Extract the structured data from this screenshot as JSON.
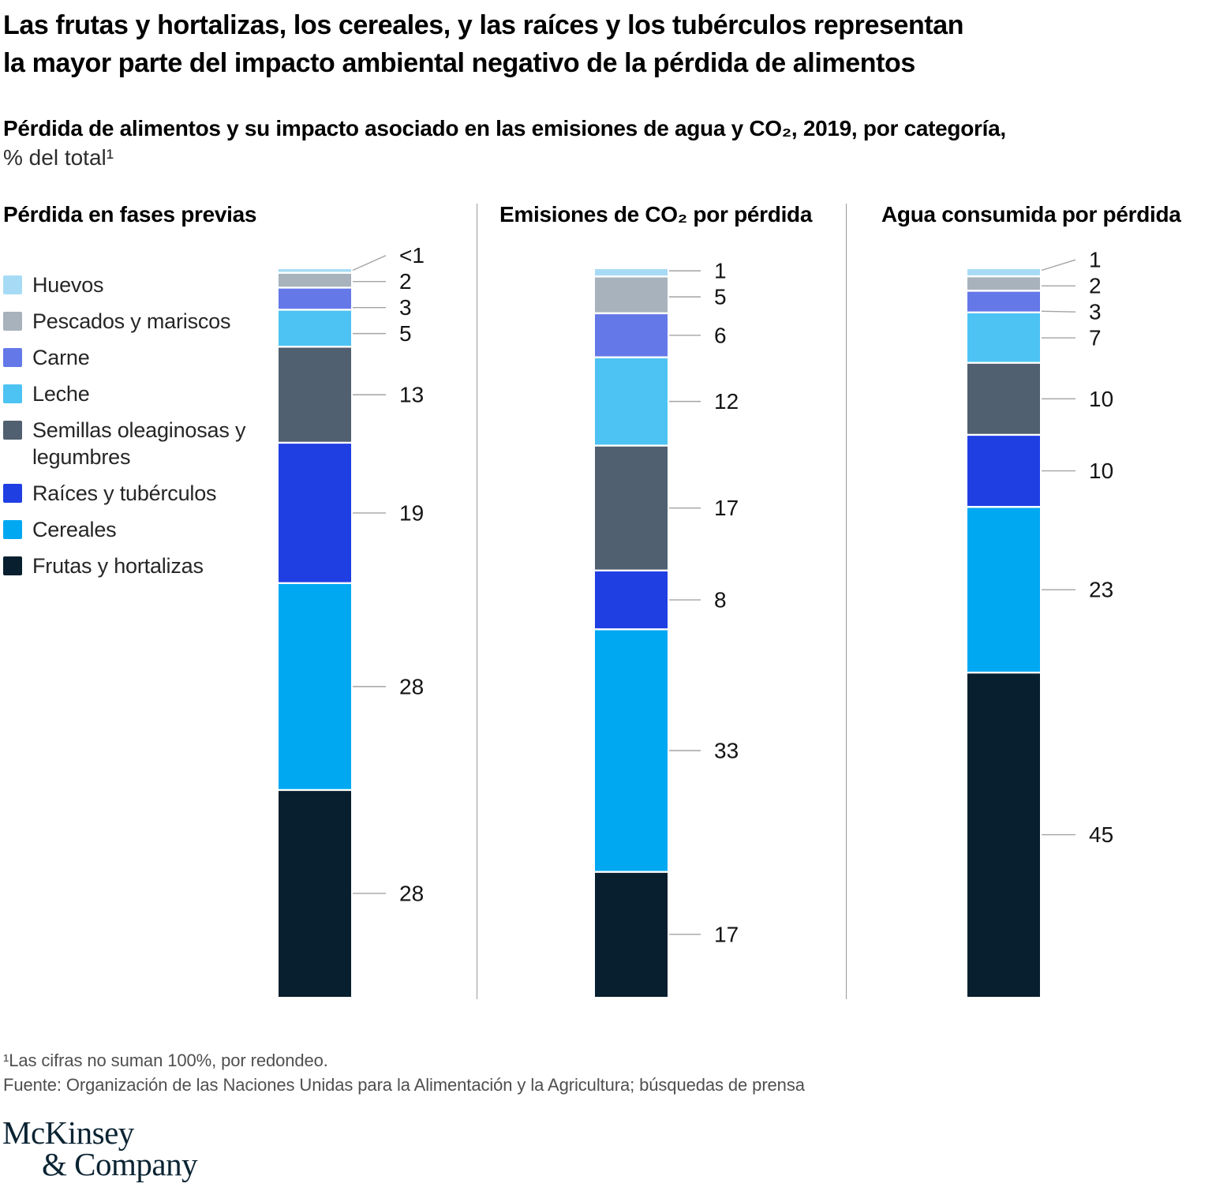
{
  "header": {
    "title_line1": "Las frutas y hortalizas, los cereales, y las raíces y los tubérculos representan",
    "title_line2": "la mayor parte del impacto ambiental negativo de la pérdida de alimentos",
    "subtitle_bold": "Pérdida de alimentos y su impacto asociado en las emisiones de agua y CO₂, 2019, por categoría,",
    "subtitle_regular": "% del total¹"
  },
  "legend": {
    "items": [
      {
        "label": "Huevos",
        "color": "#A7DBF5"
      },
      {
        "label": "Pescados y mariscos",
        "color": "#A7B2BC"
      },
      {
        "label": "Carne",
        "color": "#6478E8"
      },
      {
        "label": "Leche",
        "color": "#4DC3F3"
      },
      {
        "label": "Semillas oleaginosas y legumbres",
        "color": "#506070"
      },
      {
        "label": "Raíces y tubérculos",
        "color": "#1F3FE3"
      },
      {
        "label": "Cereales",
        "color": "#00A8F2"
      },
      {
        "label": "Frutas y hortalizas",
        "color": "#071F2E"
      }
    ]
  },
  "chart_data": {
    "type": "stacked-bar",
    "unit": "% del total",
    "legend_position": "left",
    "categories_top_to_bottom": [
      "Huevos",
      "Pescados y mariscos",
      "Carne",
      "Leche",
      "Semillas oleaginosas y legumbres",
      "Raíces y tubérculos",
      "Cereales",
      "Frutas y hortalizas"
    ],
    "charts": [
      {
        "title": "Pérdida en fases previas",
        "labels": [
          "<1",
          "2",
          "3",
          "5",
          "13",
          "19",
          "28",
          "28"
        ],
        "values": [
          0.5,
          2,
          3,
          5,
          13,
          19,
          28,
          28
        ]
      },
      {
        "title": "Emisiones de CO₂ por pérdida",
        "labels": [
          "1",
          "5",
          "6",
          "12",
          "17",
          "8",
          "33",
          "17"
        ],
        "values": [
          1,
          5,
          6,
          12,
          17,
          8,
          33,
          17
        ]
      },
      {
        "title": "Agua consumida por pérdida",
        "labels": [
          "1",
          "2",
          "3",
          "7",
          "10",
          "10",
          "23",
          "45"
        ],
        "values": [
          1,
          2,
          3,
          7,
          10,
          10,
          23,
          45
        ]
      }
    ]
  },
  "footer": {
    "footnote": "¹Las cifras no suman 100%, por redondeo.",
    "source": "Fuente: Organización de las Naciones Unidas para la Alimentación y la Agricultura; búsquedas de prensa",
    "logo_line1": "McKinsey",
    "logo_line2": "& Company"
  }
}
